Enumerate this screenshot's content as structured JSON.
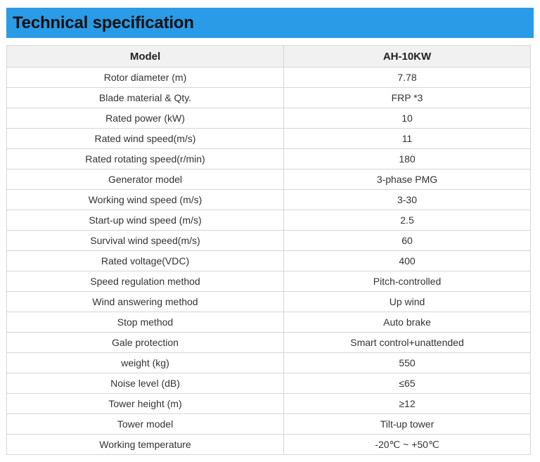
{
  "header": {
    "title": "Technical specification"
  },
  "table": {
    "columns": [
      "Model",
      "AH-10KW"
    ],
    "rows": [
      [
        "Rotor diameter (m)",
        "7.78"
      ],
      [
        "Blade material & Qty.",
        "FRP *3"
      ],
      [
        "Rated power (kW)",
        "10"
      ],
      [
        "Rated wind speed(m/s)",
        "11"
      ],
      [
        "Rated rotating speed(r/min)",
        "180"
      ],
      [
        "Generator model",
        "3-phase PMG"
      ],
      [
        "Working wind speed (m/s)",
        "3-30"
      ],
      [
        "Start-up wind speed (m/s)",
        "2.5"
      ],
      [
        "Survival wind speed(m/s)",
        "60"
      ],
      [
        "Rated voltage(VDC)",
        "400"
      ],
      [
        "Speed regulation method",
        "Pitch-controlled"
      ],
      [
        "Wind answering method",
        "Up wind"
      ],
      [
        "Stop method",
        "Auto brake"
      ],
      [
        "Gale protection",
        "Smart control+unattended"
      ],
      [
        "weight (kg)",
        "550"
      ],
      [
        "Noise level (dB)",
        "≤65"
      ],
      [
        "Tower height (m)",
        "≥12"
      ],
      [
        "Tower model",
        "Tilt-up tower"
      ],
      [
        "Working temperature",
        "-20℃ ~ +50℃"
      ]
    ]
  },
  "colors": {
    "header_bg": "#2a9be6",
    "table_head_bg": "#f1f1f1",
    "border": "#d6d6d6"
  }
}
